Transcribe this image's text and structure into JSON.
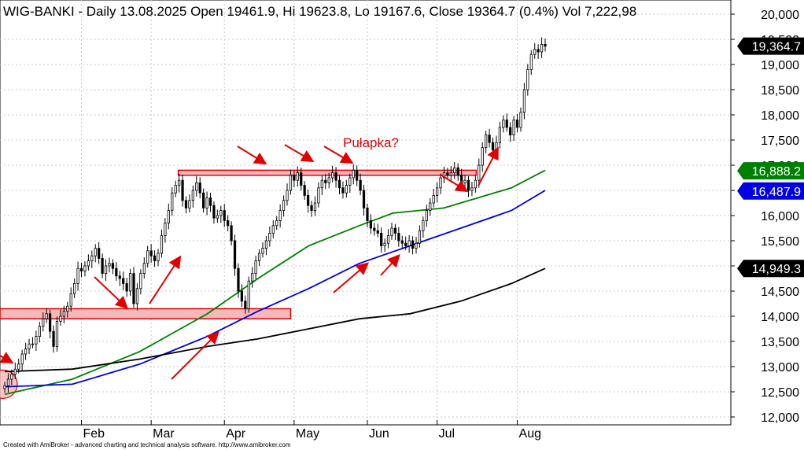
{
  "header": {
    "title": "WIG-BANKI - Daily 13.08.2025 Open 19461.9, Hi 19623.8, Lo 19167.6, Close 19364.7 (0.4%) Vol 7,222,98"
  },
  "footer": {
    "text": "Created with AmiBroker - advanced charting and technical analysis software. http://www.amibroker.com"
  },
  "annotations": {
    "trap_label": "Pułapka?"
  },
  "colors": {
    "ma_short": "#008000",
    "ma_mid": "#0000e0",
    "ma_long": "#000000",
    "zone_fill": "#f6b8b8",
    "zone_stroke": "#e00000",
    "arrow": "#e00000",
    "grid": "#c8c8c8"
  },
  "chart_data": {
    "type": "line",
    "title": "WIG-BANKI - Daily 13.08.2025 Open 19461.9, Hi 19623.8, Lo 19167.6, Close 19364.7 (0.4%) Vol 7,222,98",
    "xlabel": "",
    "ylabel": "",
    "ylim": [
      12000,
      20000
    ],
    "grid": true,
    "x_ticks": [
      "Feb",
      "Mar",
      "Apr",
      "May",
      "Jun",
      "Jul",
      "Aug"
    ],
    "y_ticks": [
      "20,000",
      "19,500",
      "19,000",
      "18,500",
      "18,000",
      "17,500",
      "17,000",
      "16,500",
      "16,000",
      "15,500",
      "15,000",
      "14,500",
      "14,000",
      "13,500",
      "13,000",
      "12,500",
      "12,000"
    ],
    "y_tick_values": [
      20000,
      19500,
      19000,
      18500,
      18000,
      17500,
      17000,
      16500,
      16000,
      15500,
      15000,
      14500,
      14000,
      13500,
      13000,
      12500,
      12000
    ],
    "price_candles_note": "daily OHLC candles, approximate closes listed below",
    "closes": [
      [
        "2025-01-02",
        12620
      ],
      [
        "2025-01-03",
        12750
      ],
      [
        "2025-01-06",
        12850
      ],
      [
        "2025-01-07",
        12950
      ],
      [
        "2025-01-08",
        13050
      ],
      [
        "2025-01-09",
        13250
      ],
      [
        "2025-01-10",
        13350
      ],
      [
        "2025-01-13",
        13450
      ],
      [
        "2025-01-14",
        13450
      ],
      [
        "2025-01-15",
        13600
      ],
      [
        "2025-01-16",
        13800
      ],
      [
        "2025-01-17",
        13950
      ],
      [
        "2025-01-20",
        14050
      ],
      [
        "2025-01-21",
        13700
      ],
      [
        "2025-01-22",
        13400
      ],
      [
        "2025-01-23",
        13900
      ],
      [
        "2025-01-24",
        14000
      ],
      [
        "2025-01-27",
        14100
      ],
      [
        "2025-01-28",
        14200
      ],
      [
        "2025-01-29",
        14450
      ],
      [
        "2025-01-30",
        14650
      ],
      [
        "2025-01-31",
        14950
      ],
      [
        "2025-02-03",
        14900
      ],
      [
        "2025-02-04",
        15000
      ],
      [
        "2025-02-05",
        15100
      ],
      [
        "2025-02-06",
        15200
      ],
      [
        "2025-02-07",
        15350
      ],
      [
        "2025-02-10",
        15150
      ],
      [
        "2025-02-11",
        14850
      ],
      [
        "2025-02-12",
        15000
      ],
      [
        "2025-02-13",
        15050
      ],
      [
        "2025-02-14",
        14950
      ],
      [
        "2025-02-17",
        14800
      ],
      [
        "2025-02-18",
        14750
      ],
      [
        "2025-02-19",
        14650
      ],
      [
        "2025-02-20",
        14500
      ],
      [
        "2025-02-21",
        14850
      ],
      [
        "2025-02-24",
        14250
      ],
      [
        "2025-02-25",
        14550
      ],
      [
        "2025-02-26",
        14850
      ],
      [
        "2025-02-27",
        15050
      ],
      [
        "2025-02-28",
        15300
      ],
      [
        "2025-03-03",
        15200
      ],
      [
        "2025-03-04",
        15100
      ],
      [
        "2025-03-05",
        15250
      ],
      [
        "2025-03-06",
        15600
      ],
      [
        "2025-03-07",
        15850
      ],
      [
        "2025-03-10",
        16100
      ],
      [
        "2025-03-11",
        16450
      ],
      [
        "2025-03-12",
        16600
      ],
      [
        "2025-03-13",
        16700
      ],
      [
        "2025-03-14",
        16300
      ],
      [
        "2025-03-17",
        16150
      ],
      [
        "2025-03-18",
        16300
      ],
      [
        "2025-03-19",
        16500
      ],
      [
        "2025-03-20",
        16650
      ],
      [
        "2025-03-21",
        16450
      ],
      [
        "2025-03-24",
        16150
      ],
      [
        "2025-03-25",
        16350
      ],
      [
        "2025-03-26",
        16200
      ],
      [
        "2025-03-27",
        15950
      ],
      [
        "2025-03-28",
        16000
      ],
      [
        "2025-03-31",
        16100
      ],
      [
        "2025-04-01",
        15900
      ],
      [
        "2025-04-02",
        15800
      ],
      [
        "2025-04-03",
        15500
      ],
      [
        "2025-04-04",
        14950
      ],
      [
        "2025-04-07",
        14500
      ],
      [
        "2025-04-08",
        14300
      ],
      [
        "2025-04-09",
        14150
      ],
      [
        "2025-04-10",
        14700
      ],
      [
        "2025-04-11",
        14850
      ],
      [
        "2025-04-14",
        15100
      ],
      [
        "2025-04-15",
        15250
      ],
      [
        "2025-04-16",
        15350
      ],
      [
        "2025-04-17",
        15500
      ],
      [
        "2025-04-22",
        15650
      ],
      [
        "2025-04-23",
        15800
      ],
      [
        "2025-04-24",
        15900
      ],
      [
        "2025-04-25",
        16100
      ],
      [
        "2025-04-28",
        16300
      ],
      [
        "2025-04-29",
        16500
      ],
      [
        "2025-04-30",
        16800
      ],
      [
        "2025-05-02",
        16700
      ],
      [
        "2025-05-05",
        16850
      ],
      [
        "2025-05-06",
        16600
      ],
      [
        "2025-05-07",
        16400
      ],
      [
        "2025-05-08",
        16200
      ],
      [
        "2025-05-09",
        16100
      ],
      [
        "2025-05-12",
        16250
      ],
      [
        "2025-05-13",
        16550
      ],
      [
        "2025-05-14",
        16700
      ],
      [
        "2025-05-15",
        16650
      ],
      [
        "2025-05-16",
        16750
      ],
      [
        "2025-05-19",
        16850
      ],
      [
        "2025-05-20",
        16700
      ],
      [
        "2025-05-21",
        16550
      ],
      [
        "2025-05-22",
        16450
      ],
      [
        "2025-05-23",
        16600
      ],
      [
        "2025-05-26",
        16750
      ],
      [
        "2025-05-27",
        16900
      ],
      [
        "2025-05-28",
        16700
      ],
      [
        "2025-05-29",
        16500
      ],
      [
        "2025-05-30",
        16150
      ],
      [
        "2025-06-02",
        15900
      ],
      [
        "2025-06-03",
        15750
      ],
      [
        "2025-06-04",
        15700
      ],
      [
        "2025-06-05",
        15650
      ],
      [
        "2025-06-06",
        15400
      ],
      [
        "2025-06-09",
        15450
      ],
      [
        "2025-06-10",
        15600
      ],
      [
        "2025-06-11",
        15750
      ],
      [
        "2025-06-12",
        15650
      ],
      [
        "2025-06-13",
        15500
      ],
      [
        "2025-06-16",
        15450
      ],
      [
        "2025-06-17",
        15400
      ],
      [
        "2025-06-18",
        15500
      ],
      [
        "2025-06-20",
        15350
      ],
      [
        "2025-06-23",
        15450
      ],
      [
        "2025-06-24",
        15700
      ],
      [
        "2025-06-25",
        15900
      ],
      [
        "2025-06-26",
        16100
      ],
      [
        "2025-06-27",
        16250
      ],
      [
        "2025-06-30",
        16400
      ],
      [
        "2025-07-01",
        16550
      ],
      [
        "2025-07-02",
        16750
      ],
      [
        "2025-07-03",
        16850
      ],
      [
        "2025-07-04",
        16800
      ],
      [
        "2025-07-07",
        16850
      ],
      [
        "2025-07-08",
        16950
      ],
      [
        "2025-07-09",
        16800
      ],
      [
        "2025-07-10",
        16650
      ],
      [
        "2025-07-11",
        16700
      ],
      [
        "2025-07-14",
        16500
      ],
      [
        "2025-07-15",
        16550
      ],
      [
        "2025-07-16",
        16700
      ],
      [
        "2025-07-17",
        17000
      ],
      [
        "2025-07-18",
        17350
      ],
      [
        "2025-07-21",
        17600
      ],
      [
        "2025-07-22",
        17450
      ],
      [
        "2025-07-23",
        17300
      ],
      [
        "2025-07-24",
        17450
      ],
      [
        "2025-07-25",
        17750
      ],
      [
        "2025-07-28",
        17900
      ],
      [
        "2025-07-29",
        17750
      ],
      [
        "2025-07-30",
        17600
      ],
      [
        "2025-07-31",
        17900
      ],
      [
        "2025-08-01",
        17750
      ],
      [
        "2025-08-04",
        18050
      ],
      [
        "2025-08-05",
        18500
      ],
      [
        "2025-08-06",
        18900
      ],
      [
        "2025-08-07",
        19200
      ],
      [
        "2025-08-08",
        19300
      ],
      [
        "2025-08-11",
        19250
      ],
      [
        "2025-08-12",
        19400
      ],
      [
        "2025-08-13",
        19365
      ]
    ],
    "series": [
      {
        "name": "",
        "role": "moving average (green)",
        "color": "#008000",
        "values": [
          [
            0,
            12450
          ],
          [
            20,
            12750
          ],
          [
            40,
            13300
          ],
          [
            60,
            14050
          ],
          [
            75,
            14750
          ],
          [
            90,
            15400
          ],
          [
            105,
            15800
          ],
          [
            115,
            16050
          ],
          [
            130,
            16150
          ],
          [
            140,
            16350
          ],
          [
            150,
            16550
          ],
          [
            160,
            16900
          ]
        ]
      },
      {
        "name": "",
        "role": "moving average (blue)",
        "color": "#0000e0",
        "values": [
          [
            0,
            12600
          ],
          [
            20,
            12650
          ],
          [
            40,
            13050
          ],
          [
            60,
            13600
          ],
          [
            75,
            14100
          ],
          [
            90,
            14550
          ],
          [
            105,
            15050
          ],
          [
            120,
            15400
          ],
          [
            135,
            15750
          ],
          [
            150,
            16100
          ],
          [
            160,
            16500
          ]
        ]
      },
      {
        "name": "",
        "role": "moving average (black)",
        "color": "#000000",
        "values": [
          [
            0,
            12900
          ],
          [
            20,
            12950
          ],
          [
            40,
            13150
          ],
          [
            60,
            13400
          ],
          [
            75,
            13550
          ],
          [
            90,
            13750
          ],
          [
            105,
            13950
          ],
          [
            120,
            14050
          ],
          [
            135,
            14300
          ],
          [
            150,
            14650
          ],
          [
            160,
            14950
          ]
        ]
      }
    ],
    "value_badges": [
      {
        "label": "19,364.7",
        "value": 19364.7,
        "bg": "#000000",
        "fg": "#ffffff"
      },
      {
        "label": "16,888.2",
        "value": 16888.2,
        "bg": "#008000",
        "fg": "#ffffff"
      },
      {
        "label": "16,487.9",
        "value": 16487.9,
        "bg": "#0000e0",
        "fg": "#ffffff"
      },
      {
        "label": "14,949.3",
        "value": 14949.3,
        "bg": "#000000",
        "fg": "#ffffff"
      }
    ],
    "zones": [
      {
        "from_value": 16800,
        "to_value": 16900
      },
      {
        "from_value": 13950,
        "to_value": 14150
      }
    ]
  }
}
